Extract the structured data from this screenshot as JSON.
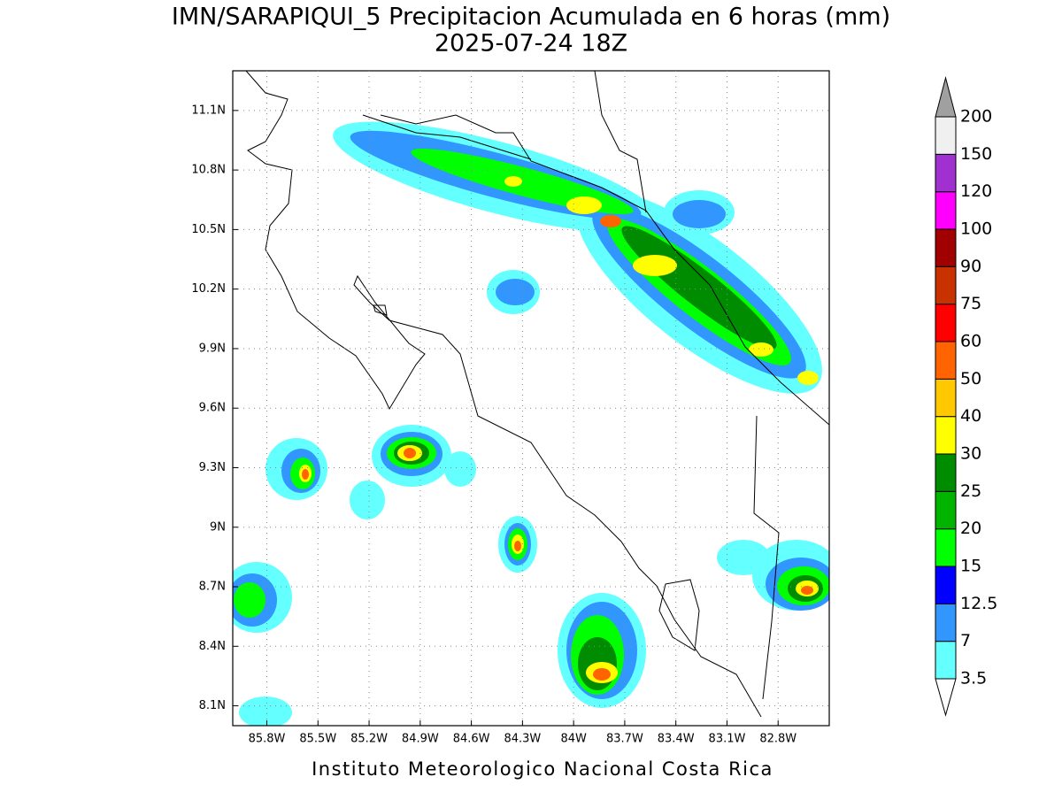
{
  "header": {
    "title": "IMN/SARAPIQUI_5 Precipitacion Acumulada en 6 horas (mm)",
    "subtitle": "2025-07-24 18Z"
  },
  "map": {
    "xlim": [
      -86,
      -82.5
    ],
    "ylim": [
      8.0,
      11.3
    ],
    "grid": true,
    "xticks": [
      {
        "value": -85.8,
        "label": "85.8W"
      },
      {
        "value": -85.5,
        "label": "85.5W"
      },
      {
        "value": -85.2,
        "label": "85.2W"
      },
      {
        "value": -84.9,
        "label": "84.9W"
      },
      {
        "value": -84.6,
        "label": "84.6W"
      },
      {
        "value": -84.3,
        "label": "84.3W"
      },
      {
        "value": -84,
        "label": "84W"
      },
      {
        "value": -83.7,
        "label": "83.7W"
      },
      {
        "value": -83.4,
        "label": "83.4W"
      },
      {
        "value": -83.1,
        "label": "83.1W"
      },
      {
        "value": -82.8,
        "label": "82.8W"
      }
    ],
    "yticks": [
      {
        "value": 8.1,
        "label": "8.1N"
      },
      {
        "value": 8.4,
        "label": "8.4N"
      },
      {
        "value": 8.7,
        "label": "8.7N"
      },
      {
        "value": 9,
        "label": "9N"
      },
      {
        "value": 9.3,
        "label": "9.3N"
      },
      {
        "value": 9.6,
        "label": "9.6N"
      },
      {
        "value": 9.9,
        "label": "9.9N"
      },
      {
        "value": 10.2,
        "label": "10.2N"
      },
      {
        "value": 10.5,
        "label": "10.5N"
      },
      {
        "value": 10.8,
        "label": "10.8N"
      },
      {
        "value": 11.1,
        "label": "11.1N"
      }
    ]
  },
  "colorbar": {
    "levels": [
      3.5,
      7,
      12.5,
      15,
      20,
      25,
      30,
      40,
      50,
      60,
      75,
      90,
      100,
      120,
      150,
      200
    ],
    "colors": [
      "#ffffff",
      "#64ffff",
      "#3296ff",
      "#0000ff",
      "#00ff00",
      "#00b400",
      "#008c00",
      "#ffff00",
      "#ffc800",
      "#ff6400",
      "#ff0000",
      "#c83200",
      "#a00000",
      "#ff00ff",
      "#a030d0",
      "#f0f0f0",
      "#a0a0a0"
    ]
  },
  "footer": "Instituto Meteorologico Nacional Costa Rica"
}
